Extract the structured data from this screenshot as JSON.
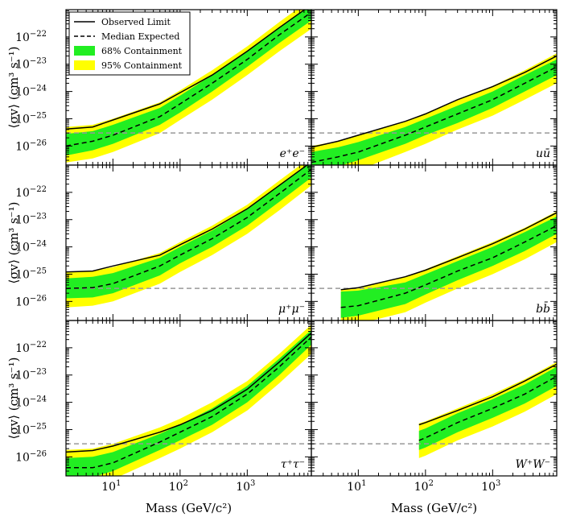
{
  "figure": {
    "xlabel": "Mass (GeV/c²)",
    "ylabel": "⟨σv⟩ (cm³ s⁻¹)"
  },
  "legend": {
    "placement": "top-left of first panel",
    "entries": [
      {
        "label": "Observed Limit",
        "style": "solid"
      },
      {
        "label": "Median Expected",
        "style": "dashed"
      },
      {
        "label": "68% Containment",
        "style": "band",
        "color": "#22ee22"
      },
      {
        "label": "95% Containment",
        "style": "band",
        "color": "#ffff00"
      }
    ]
  },
  "colors": {
    "observed": "#000000",
    "expected": "#000000",
    "band68": "#22ee22",
    "band95": "#ffff00",
    "reference": "#999999"
  },
  "chart_data": {
    "type": "line",
    "xscale": "log",
    "yscale": "log",
    "xlim": [
      2,
      9000
    ],
    "ylim": [
      2e-27,
      1e-21
    ],
    "xticks": [
      {
        "value": 10,
        "base": "10",
        "exp": "1"
      },
      {
        "value": 100,
        "base": "10",
        "exp": "2"
      },
      {
        "value": 1000,
        "base": "10",
        "exp": "3"
      }
    ],
    "yticks": [
      {
        "value": 1e-26,
        "base": "10",
        "exp": "−26"
      },
      {
        "value": 1e-25,
        "base": "10",
        "exp": "−25"
      },
      {
        "value": 1e-24,
        "base": "10",
        "exp": "−24"
      },
      {
        "value": 1e-23,
        "base": "10",
        "exp": "−23"
      },
      {
        "value": 1e-22,
        "base": "10",
        "exp": "−22"
      }
    ],
    "reference_line": {
      "y": 3e-26,
      "style": "dashed"
    },
    "panels": [
      {
        "channel": "e⁺e⁻",
        "x": [
          2,
          5,
          10,
          50,
          100,
          300,
          1000,
          3000,
          9000
        ],
        "observed": [
          4.2e-26,
          5e-26,
          9e-26,
          3.5e-25,
          9e-25,
          4e-24,
          3e-23,
          2.2e-22,
          1.5e-21
        ],
        "expected": [
          1e-26,
          1.5e-26,
          2.5e-26,
          1.2e-25,
          3.5e-25,
          2e-24,
          1.5e-23,
          1.2e-22,
          8e-22
        ],
        "band68_low": [
          4.5e-27,
          7e-27,
          1.2e-26,
          6e-26,
          1.7e-25,
          1e-24,
          8e-24,
          6e-23,
          4e-22
        ],
        "band68_high": [
          2.8e-26,
          3.5e-26,
          6e-26,
          2.5e-25,
          7e-25,
          4e-24,
          3e-23,
          2.2e-22,
          1.5e-21
        ],
        "band95_low": [
          2.5e-27,
          3.5e-27,
          6e-27,
          3e-26,
          9e-26,
          5e-25,
          4e-24,
          3e-23,
          2e-22
        ],
        "band95_high": [
          5e-26,
          6e-26,
          1e-25,
          4e-25,
          1.1e-24,
          6e-24,
          4.5e-23,
          3.5e-22,
          2.5e-21
        ]
      },
      {
        "channel": "uū",
        "x": [
          2,
          5,
          10,
          50,
          100,
          300,
          1000,
          3000,
          9000
        ],
        "observed": [
          9e-27,
          1.5e-26,
          2.5e-26,
          8e-26,
          1.5e-25,
          5e-25,
          1.5e-24,
          5e-24,
          2e-23
        ],
        "expected": [
          2.5e-27,
          4e-27,
          6e-27,
          2.5e-26,
          5e-26,
          1.5e-25,
          5e-25,
          2e-24,
          8e-24
        ],
        "band68_low": [
          1.2e-27,
          1.8e-27,
          3e-27,
          1.2e-26,
          2.5e-26,
          7e-26,
          2.5e-25,
          1e-24,
          4e-24
        ],
        "band68_high": [
          6e-27,
          9e-27,
          1.4e-26,
          5e-26,
          1e-25,
          3e-25,
          1e-24,
          4e-24,
          1.5e-23
        ],
        "band95_low": [
          5e-28,
          8e-28,
          1.3e-27,
          6e-27,
          1.2e-26,
          4e-26,
          1.3e-25,
          5e-25,
          2e-24
        ],
        "band95_high": [
          1e-26,
          1.5e-26,
          2.5e-26,
          8e-26,
          1.6e-25,
          5e-25,
          1.6e-24,
          6e-24,
          2.5e-23
        ]
      },
      {
        "channel": "μ⁺μ⁻",
        "x": [
          2,
          5,
          10,
          50,
          100,
          300,
          1000,
          3000,
          9000
        ],
        "observed": [
          1.2e-25,
          1.3e-25,
          2e-25,
          5e-25,
          1.2e-24,
          4.5e-24,
          2.5e-23,
          1.8e-22,
          1.3e-21
        ],
        "expected": [
          3e-26,
          3.2e-26,
          4.5e-26,
          2e-25,
          5e-25,
          2e-24,
          1.2e-23,
          9e-23,
          7e-22
        ],
        "band68_low": [
          1.3e-26,
          1.4e-26,
          2e-26,
          9e-26,
          2.5e-25,
          1e-24,
          6e-24,
          4.5e-23,
          3.5e-22
        ],
        "band68_high": [
          7e-26,
          8e-26,
          1.1e-25,
          4e-25,
          1e-24,
          4e-24,
          2.4e-23,
          1.8e-22,
          1.4e-21
        ],
        "band95_low": [
          6e-27,
          7e-27,
          1e-26,
          4.5e-26,
          1.2e-25,
          5e-25,
          3e-24,
          2.2e-23,
          1.8e-22
        ],
        "band95_high": [
          1.2e-25,
          1.3e-25,
          1.8e-25,
          6e-25,
          1.5e-24,
          6e-24,
          3.5e-23,
          2.7e-22,
          2e-21
        ]
      },
      {
        "channel": "bb̄",
        "x": [
          5.5,
          10,
          50,
          100,
          300,
          1000,
          3000,
          9000
        ],
        "observed": [
          2.7e-26,
          3.2e-26,
          8e-26,
          1.4e-25,
          4e-25,
          1.3e-24,
          4.5e-24,
          1.8e-23
        ],
        "expected": [
          6e-27,
          7e-27,
          2e-26,
          4e-26,
          1.3e-25,
          4e-25,
          1.5e-24,
          6e-24
        ],
        "band68_low": [
          2.5e-27,
          3e-27,
          8e-27,
          1.8e-26,
          6e-26,
          2e-25,
          7e-25,
          3e-24
        ],
        "band68_high": [
          2.3e-26,
          2.5e-26,
          5e-26,
          1e-25,
          3e-25,
          1e-24,
          3.5e-24,
          1.3e-23
        ],
        "band95_low": [
          1.2e-27,
          1.5e-27,
          4e-27,
          9e-27,
          3e-26,
          1e-25,
          3.5e-25,
          1.5e-24
        ],
        "band95_high": [
          2.8e-26,
          3e-26,
          8e-26,
          1.5e-25,
          4.5e-25,
          1.5e-24,
          5e-24,
          2e-23
        ]
      },
      {
        "channel": "τ⁺τ⁻",
        "x": [
          2,
          5,
          10,
          50,
          100,
          300,
          1000,
          3000,
          9000
        ],
        "observed": [
          1.5e-26,
          1.7e-26,
          2.5e-26,
          8e-26,
          1.5e-25,
          5e-25,
          3e-24,
          3e-23,
          3.5e-22
        ],
        "expected": [
          4e-27,
          4e-27,
          6e-27,
          3.5e-26,
          8e-26,
          3e-25,
          2e-24,
          2e-23,
          2.5e-22
        ],
        "band68_low": [
          1.8e-27,
          1.8e-27,
          3e-27,
          1.8e-26,
          4e-26,
          1.5e-25,
          1e-24,
          1e-23,
          1.3e-22
        ],
        "band68_high": [
          9e-27,
          1e-26,
          1.5e-26,
          7e-26,
          1.5e-25,
          6e-25,
          4e-24,
          4e-23,
          4.5e-22
        ],
        "band95_low": [
          9e-28,
          1e-27,
          1.5e-27,
          9e-27,
          2e-26,
          8e-26,
          5e-25,
          5e-24,
          6e-23
        ],
        "band95_high": [
          1.8e-26,
          2e-26,
          3e-26,
          1.2e-25,
          2.5e-25,
          1e-24,
          6e-24,
          6e-23,
          7e-22
        ]
      },
      {
        "channel": "W⁺W⁻",
        "x": [
          80,
          100,
          300,
          1000,
          3000,
          9000
        ],
        "observed": [
          1.5e-25,
          1.8e-25,
          5e-25,
          1.6e-24,
          6e-24,
          2.5e-23
        ],
        "expected": [
          4e-26,
          5e-26,
          1.8e-25,
          6e-25,
          2e-24,
          9e-24
        ],
        "band68_low": [
          1.8e-26,
          2.2e-26,
          8e-26,
          2.7e-25,
          9e-25,
          4e-24
        ],
        "band68_high": [
          9e-26,
          1.1e-25,
          4e-25,
          1.3e-24,
          4.5e-24,
          2e-23
        ],
        "band95_low": [
          9e-27,
          1.1e-26,
          4e-26,
          1.3e-25,
          4.5e-25,
          2e-24
        ],
        "band95_high": [
          1.7e-25,
          2e-25,
          6e-25,
          2e-24,
          7e-24,
          3e-23
        ]
      }
    ]
  }
}
